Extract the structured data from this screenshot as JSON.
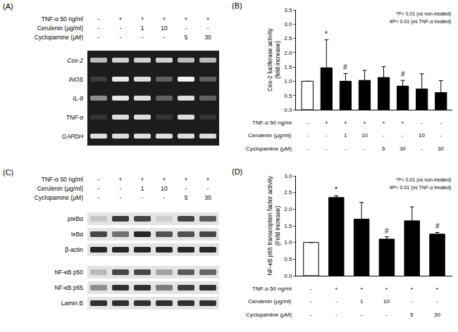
{
  "chart_data": [
    {
      "type": "gel",
      "label": "(A)",
      "treatments": [
        {
          "name": "TNF-α 50 ng/ml",
          "values": [
            "-",
            "+",
            "+",
            "+",
            "+",
            "+"
          ]
        },
        {
          "name": "Cerulenin (μg/ml)",
          "values": [
            "-",
            "-",
            "1",
            "10",
            "-",
            "-"
          ]
        },
        {
          "name": "Cyclopamine (μM)",
          "values": [
            "-",
            "-",
            "-",
            "-",
            "5",
            "30"
          ]
        }
      ],
      "groups": [
        [
          {
            "name": "Cox-2",
            "values": [
              0.7,
              0.8,
              0.8,
              0.8,
              0.7,
              0.7
            ]
          },
          {
            "name": "iNOS",
            "values": [
              0.15,
              0.9,
              0.85,
              0.3,
              0.95,
              0.3
            ]
          },
          {
            "name": "IL-8",
            "values": [
              0.5,
              0.9,
              0.85,
              0.3,
              0.85,
              0.3
            ]
          },
          {
            "name": "TNF-α",
            "values": [
              0.1,
              0.85,
              0.85,
              0.1,
              0.85,
              0.1
            ]
          },
          {
            "name": "GAPDH",
            "values": [
              0.85,
              0.85,
              0.85,
              0.85,
              0.85,
              0.85
            ]
          }
        ]
      ]
    },
    {
      "type": "bar",
      "label": "(B)",
      "ylabel": "Cox-2 luciferase activity (fold increase)",
      "ylim": [
        0,
        3.5
      ],
      "yticks": [
        {
          "value": 0,
          "label": "0.0"
        },
        {
          "value": 0.5,
          "label": "0.5"
        },
        {
          "value": 1,
          "label": "1.0"
        },
        {
          "value": 1.5,
          "label": "1.5"
        },
        {
          "value": 2,
          "label": "2.0"
        },
        {
          "value": 2.5,
          "label": "2.5"
        },
        {
          "value": 3,
          "label": "3.0"
        },
        {
          "value": 3.5,
          "label": "3.5"
        }
      ],
      "values": [
        1.0,
        1.47,
        1.0,
        1.03,
        1.13,
        0.83,
        0.73,
        0.6
      ],
      "errors": [
        null,
        0.98,
        0.27,
        0.35,
        0.38,
        0.2,
        0.53,
        0.42
      ],
      "colors": [
        "#ffffff",
        "#000000",
        "#000000",
        "#000000",
        "#000000",
        "#000000",
        "#000000",
        "#000000"
      ],
      "marks": [
        null,
        "*",
        "#",
        null,
        null,
        "#",
        null,
        null
      ],
      "annotations": [
        "*P< 0.01 (vs non-treated)",
        "#P< 0.01 (vs TNF-α treated)"
      ],
      "tick_labels": "y",
      "treatments": [
        {
          "name": "TNF-α 50 ng/ml",
          "values": [
            "-",
            "+",
            "+",
            "+",
            "+",
            "+",
            "-",
            "-"
          ]
        },
        {
          "name": "Cerulenin (μg/ml)",
          "values": [
            "-",
            "-",
            "1",
            "10",
            "-",
            "-",
            "10",
            "-"
          ]
        },
        {
          "name": "Cyclopamine (μM)",
          "values": [
            "-",
            "-",
            "-",
            "-",
            "5",
            "30",
            "-",
            "30"
          ]
        }
      ]
    },
    {
      "type": "blot",
      "label": "(C)",
      "treatments": [
        {
          "name": "TNF-α 50 ng/ml",
          "values": [
            "-",
            "+",
            "+",
            "+",
            "+",
            "+"
          ]
        },
        {
          "name": "Cerulenin (μg/ml)",
          "values": [
            "-",
            "-",
            "1",
            "10",
            "-",
            "-"
          ]
        },
        {
          "name": "Cyclopamine (μM)",
          "values": [
            "-",
            "-",
            "-",
            "-",
            "5",
            "30"
          ]
        }
      ],
      "groups": [
        [
          {
            "name": "pIκBα",
            "values": [
              0.15,
              0.8,
              0.75,
              0.1,
              0.75,
              0.65
            ]
          },
          {
            "name": "IκBα",
            "values": [
              0.75,
              0.55,
              0.9,
              0.7,
              0.7,
              0.75
            ]
          },
          {
            "name": "β-actin",
            "values": [
              0.9,
              0.9,
              0.9,
              0.9,
              0.9,
              0.9
            ]
          }
        ],
        [
          {
            "name": "NF-κB p50",
            "values": [
              0.2,
              0.75,
              0.75,
              0.3,
              0.65,
              0.6
            ]
          },
          {
            "name": "NF-κB p65",
            "values": [
              0.4,
              0.85,
              0.85,
              0.5,
              0.8,
              0.85
            ]
          },
          {
            "name": "Lamin B",
            "values": [
              0.85,
              0.85,
              0.85,
              0.85,
              0.85,
              0.85
            ]
          }
        ]
      ]
    },
    {
      "type": "bar",
      "label": "(D)",
      "ylabel": "NF-κB p65 transcription factor activity (Fold increase)",
      "ylim": [
        0,
        3
      ],
      "yticks": [
        {
          "value": 0,
          "label": "0.0"
        },
        {
          "value": 0.5,
          "label": "0.5"
        },
        {
          "value": 1,
          "label": "1.0"
        },
        {
          "value": 1.5,
          "label": "1.5"
        },
        {
          "value": 2,
          "label": "2.0"
        },
        {
          "value": 2.5,
          "label": "2.5"
        },
        {
          "value": 3,
          "label": "3.0"
        }
      ],
      "values": [
        1.0,
        2.35,
        1.7,
        1.1,
        1.65,
        1.25
      ],
      "errors": [
        null,
        0.05,
        0.5,
        0.07,
        0.42,
        0.05
      ],
      "colors": [
        "#ffffff",
        "#000000",
        "#000000",
        "#000000",
        "#000000",
        "#000000"
      ],
      "marks": [
        null,
        "*",
        null,
        "#",
        null,
        "#"
      ],
      "annotations": [
        "*P< 0.01 (vs non-treated)",
        "#P< 0.01 (vs TNF-α treated)"
      ],
      "tick_labels": "y",
      "treatments": [
        {
          "name": "TNF-α 50 ng/ml",
          "values": [
            "-",
            "+",
            "+",
            "+",
            "+",
            "+"
          ]
        },
        {
          "name": "Cerulenin (μg/ml)",
          "values": [
            "-",
            "-",
            "1",
            "10",
            "-",
            "-"
          ]
        },
        {
          "name": "Cyclopamine (μM)",
          "values": [
            "-",
            "-",
            "-",
            "-",
            "5",
            "30"
          ]
        }
      ]
    }
  ]
}
